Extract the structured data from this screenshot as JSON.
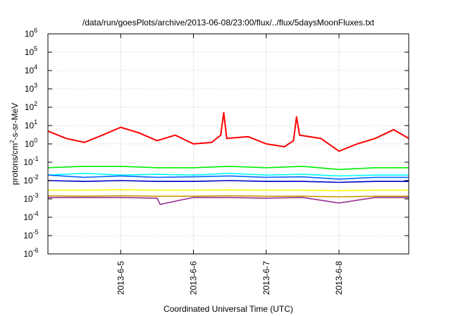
{
  "chart_data": {
    "type": "line",
    "title": "/data/run/goesPlots/archive/2013-06-08/23:00/flux/../flux/5daysMoonFluxes.txt",
    "xlabel": "Coordinated Universal Time (UTC)",
    "ylabel": "protons/cm²-s-sr-MeV",
    "ylabel_parts": {
      "pre": "protons/cm",
      "sup": "2",
      "post": "-s-sr-MeV"
    },
    "y_scale": "log",
    "ylim": [
      1e-06,
      1000000.0
    ],
    "y_ticks": [
      {
        "base": "10",
        "exp": "-6",
        "value": 1e-06
      },
      {
        "base": "10",
        "exp": "-5",
        "value": 1e-05
      },
      {
        "base": "10",
        "exp": "-4",
        "value": 0.0001
      },
      {
        "base": "10",
        "exp": "-3",
        "value": 0.001
      },
      {
        "base": "10",
        "exp": "-2",
        "value": 0.01
      },
      {
        "base": "10",
        "exp": "-1",
        "value": 0.1
      },
      {
        "base": "10",
        "exp": "0",
        "value": 1
      },
      {
        "base": "10",
        "exp": "1",
        "value": 10
      },
      {
        "base": "10",
        "exp": "2",
        "value": 100
      },
      {
        "base": "10",
        "exp": "3",
        "value": 1000
      },
      {
        "base": "10",
        "exp": "4",
        "value": 10000
      },
      {
        "base": "10",
        "exp": "5",
        "value": 100000
      },
      {
        "base": "10",
        "exp": "6",
        "value": 1000000
      }
    ],
    "xlim": [
      "2013-06-04 00:00",
      "2013-06-08 23:00"
    ],
    "x_ticks": [
      {
        "label": "2013-6-5",
        "value": "2013-06-05 00:00"
      },
      {
        "label": "2013-6-6",
        "value": "2013-06-06 00:00"
      },
      {
        "label": "2013-6-7",
        "value": "2013-06-07 00:00"
      },
      {
        "label": "2013-6-8",
        "value": "2013-06-08 00:00"
      }
    ],
    "grid": true,
    "legend": "none",
    "series": [
      {
        "color": "#ff0000",
        "x": [
          "2013-06-04 00:00",
          "2013-06-04 06:00",
          "2013-06-04 12:00",
          "2013-06-04 18:00",
          "2013-06-05 00:00",
          "2013-06-05 06:00",
          "2013-06-05 12:00",
          "2013-06-05 18:00",
          "2013-06-06 00:00",
          "2013-06-06 06:00",
          "2013-06-06 09:00",
          "2013-06-06 10:00",
          "2013-06-06 11:00",
          "2013-06-06 18:00",
          "2013-06-07 00:00",
          "2013-06-07 06:00",
          "2013-06-07 09:00",
          "2013-06-07 10:00",
          "2013-06-07 11:00",
          "2013-06-07 18:00",
          "2013-06-08 00:00",
          "2013-06-08 06:00",
          "2013-06-08 12:00",
          "2013-06-08 18:00",
          "2013-06-08 23:00"
        ],
        "values": [
          5,
          2,
          1.2,
          3,
          8,
          4,
          1.5,
          3,
          1,
          1.2,
          3,
          50,
          2,
          2.5,
          1,
          0.7,
          1.5,
          30,
          3,
          2,
          0.4,
          1,
          2,
          6,
          2
        ]
      },
      {
        "color": "#00ee00",
        "x": [
          "2013-06-04 00:00",
          "2013-06-04 12:00",
          "2013-06-05 00:00",
          "2013-06-05 12:00",
          "2013-06-06 00:00",
          "2013-06-06 12:00",
          "2013-06-07 00:00",
          "2013-06-07 12:00",
          "2013-06-08 00:00",
          "2013-06-08 12:00",
          "2013-06-08 23:00"
        ],
        "values": [
          0.05,
          0.06,
          0.06,
          0.05,
          0.05,
          0.06,
          0.05,
          0.06,
          0.04,
          0.05,
          0.05
        ]
      },
      {
        "color": "#00ffff",
        "x": [
          "2013-06-04 00:00",
          "2013-06-04 12:00",
          "2013-06-05 00:00",
          "2013-06-05 12:00",
          "2013-06-06 00:00",
          "2013-06-06 12:00",
          "2013-06-07 00:00",
          "2013-06-07 12:00",
          "2013-06-08 00:00",
          "2013-06-08 12:00",
          "2013-06-08 23:00"
        ],
        "values": [
          0.02,
          0.025,
          0.02,
          0.022,
          0.02,
          0.025,
          0.02,
          0.022,
          0.018,
          0.02,
          0.02
        ]
      },
      {
        "color": "#0066ff",
        "x": [
          "2013-06-04 00:00",
          "2013-06-04 12:00",
          "2013-06-05 00:00",
          "2013-06-05 12:00",
          "2013-06-06 00:00",
          "2013-06-06 12:00",
          "2013-06-07 00:00",
          "2013-06-07 12:00",
          "2013-06-08 00:00",
          "2013-06-08 12:00",
          "2013-06-08 23:00"
        ],
        "values": [
          0.02,
          0.015,
          0.018,
          0.015,
          0.016,
          0.018,
          0.015,
          0.016,
          0.012,
          0.015,
          0.015
        ]
      },
      {
        "color": "#0000cc",
        "x": [
          "2013-06-04 00:00",
          "2013-06-04 12:00",
          "2013-06-05 00:00",
          "2013-06-05 12:00",
          "2013-06-06 00:00",
          "2013-06-06 12:00",
          "2013-06-07 00:00",
          "2013-06-07 12:00",
          "2013-06-08 00:00",
          "2013-06-08 12:00",
          "2013-06-08 23:00"
        ],
        "values": [
          0.01,
          0.009,
          0.01,
          0.009,
          0.009,
          0.01,
          0.009,
          0.009,
          0.008,
          0.009,
          0.009
        ]
      },
      {
        "color": "#ffff00",
        "x": [
          "2013-06-04 00:00",
          "2013-06-04 12:00",
          "2013-06-05 00:00",
          "2013-06-05 12:00",
          "2013-06-06 00:00",
          "2013-06-06 12:00",
          "2013-06-07 00:00",
          "2013-06-07 12:00",
          "2013-06-08 00:00",
          "2013-06-08 12:00",
          "2013-06-08 23:00"
        ],
        "values": [
          0.003,
          0.003,
          0.0032,
          0.003,
          0.003,
          0.0031,
          0.003,
          0.003,
          0.0028,
          0.003,
          0.003
        ]
      },
      {
        "color": "#cc9900",
        "x": [
          "2013-06-04 00:00",
          "2013-06-04 12:00",
          "2013-06-05 00:00",
          "2013-06-05 12:00",
          "2013-06-06 00:00",
          "2013-06-06 12:00",
          "2013-06-07 00:00",
          "2013-06-07 12:00",
          "2013-06-08 00:00",
          "2013-06-08 12:00",
          "2013-06-08 23:00"
        ],
        "values": [
          0.0015,
          0.0014,
          0.0015,
          0.0014,
          0.0014,
          0.0015,
          0.0014,
          0.0014,
          0.0013,
          0.0014,
          0.0014
        ]
      },
      {
        "color": "#993399",
        "x": [
          "2013-06-04 00:00",
          "2013-06-04 12:00",
          "2013-06-05 00:00",
          "2013-06-05 12:00",
          "2013-06-05 13:00",
          "2013-06-06 00:00",
          "2013-06-06 12:00",
          "2013-06-07 00:00",
          "2013-06-07 12:00",
          "2013-06-08 00:00",
          "2013-06-08 12:00",
          "2013-06-08 23:00"
        ],
        "values": [
          0.0012,
          0.0012,
          0.0012,
          0.0011,
          0.0005,
          0.0012,
          0.0012,
          0.0011,
          0.0012,
          0.0006,
          0.0012,
          0.0012
        ]
      }
    ]
  }
}
